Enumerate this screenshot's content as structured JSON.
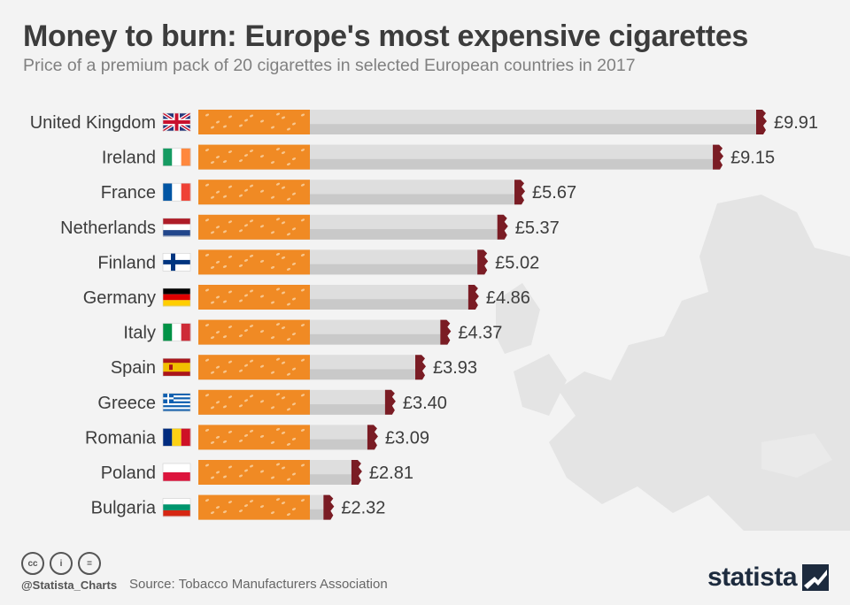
{
  "header": {
    "title": "Money to burn: Europe's most expensive cigarettes",
    "subtitle": "Price of a premium pack of 20 cigarettes in selected European countries in 2017"
  },
  "chart_data": {
    "type": "bar",
    "orientation": "horizontal",
    "title": "Money to burn: Europe's most expensive cigarettes",
    "subtitle": "Price of a premium pack of 20 cigarettes in selected European countries in 2017",
    "categories": [
      "United Kingdom",
      "Ireland",
      "France",
      "Netherlands",
      "Finland",
      "Germany",
      "Italy",
      "Spain",
      "Greece",
      "Romania",
      "Poland",
      "Bulgaria"
    ],
    "values": [
      9.91,
      9.15,
      5.67,
      5.37,
      5.02,
      4.86,
      4.37,
      3.93,
      3.4,
      3.09,
      2.81,
      2.32
    ],
    "value_labels": [
      "£9.91",
      "£9.15",
      "£5.67",
      "£5.37",
      "£5.02",
      "£4.86",
      "£4.37",
      "£3.93",
      "£3.40",
      "£3.09",
      "£2.81",
      "£2.32"
    ],
    "flags": [
      "uk-flag-icon",
      "ireland-flag-icon",
      "france-flag-icon",
      "netherlands-flag-icon",
      "finland-flag-icon",
      "germany-flag-icon",
      "italy-flag-icon",
      "spain-flag-icon",
      "greece-flag-icon",
      "romania-flag-icon",
      "poland-flag-icon",
      "bulgaria-flag-icon"
    ],
    "xlim": [
      0,
      10
    ],
    "grid": false,
    "legend": "none",
    "colors": {
      "filter": "#f08a24",
      "filter_speckle": "#f7c58c",
      "paper": "#dedede",
      "paper_shadow": "#c9c9c9",
      "ash": "#7a1c24",
      "label": "#3c3c3c"
    }
  },
  "footer": {
    "handle": "@Statista_Charts",
    "source_prefix": "Source:",
    "source": "Tobacco Manufacturers Association",
    "license_icons": [
      "cc-icon",
      "by-icon",
      "nd-icon"
    ],
    "license_glyphs": [
      "cc",
      "i",
      "="
    ],
    "brand": "statista"
  }
}
